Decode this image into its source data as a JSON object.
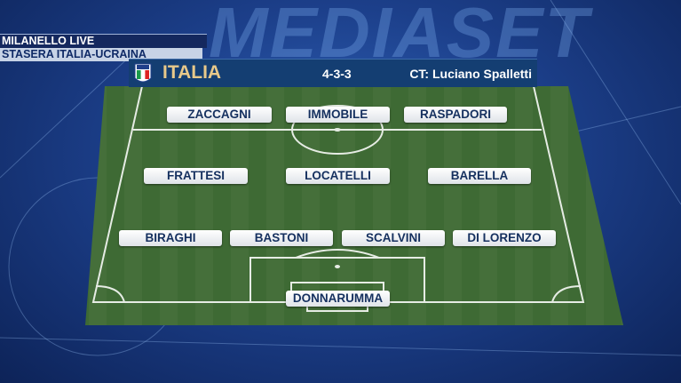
{
  "watermark": "MEDIASET",
  "ticker": {
    "line1": "MILANELLO LIVE",
    "line2": "STASERA ITALIA-UCRAINA"
  },
  "header": {
    "crest_text": "ITALIA",
    "team": "ITALIA",
    "formation": "4-3-3",
    "coach": "CT: Luciano Spalletti"
  },
  "players": {
    "forwards": [
      "ZACCAGNI",
      "IMMOBILE",
      "RASPADORI"
    ],
    "midfielders": [
      "FRATTESI",
      "LOCATELLI",
      "BARELLA"
    ],
    "defenders": [
      "BIRAGHI",
      "BASTONI",
      "SCALVINI",
      "DI LORENZO"
    ],
    "goalkeeper": "DONNARUMMA"
  },
  "colors": {
    "header_bg": "#143e72",
    "team_gold": "#e8c98a",
    "player_text": "#15305f",
    "pitch": "#3f6a35"
  }
}
